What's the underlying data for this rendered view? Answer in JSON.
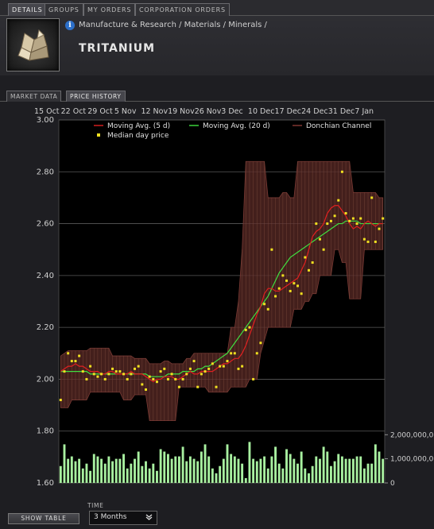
{
  "tabs": [
    {
      "label": "DETAILS",
      "active": true
    },
    {
      "label": "GROUPS",
      "active": false
    },
    {
      "label": "MY ORDERS",
      "active": false
    },
    {
      "label": "CORPORATION ORDERS",
      "active": false
    }
  ],
  "header": {
    "breadcrumb": "Manufacture & Research / Materials / Minerals /",
    "title": "TRITANIUM",
    "info_icon_glyph": "i"
  },
  "subtabs": [
    {
      "label": "MARKET DATA",
      "active": false
    },
    {
      "label": "PRICE HISTORY",
      "active": true
    }
  ],
  "footer": {
    "show_table_label": "SHOW TABLE",
    "time_label": "TIME",
    "time_value": "3 Months",
    "chevron": "❯"
  },
  "colors": {
    "moving_avg_5": "#e02020",
    "moving_avg_20": "#40e040",
    "donchian": "#5a2a26",
    "median": "#f0e020",
    "volume": "#a8f0a0"
  },
  "chart_data": {
    "type": "line",
    "x_tick_labels": [
      "15 Oct",
      "22 Oct",
      "29 Oct",
      "5 Nov",
      "12 Nov",
      "19 Nov",
      "26 Nov",
      "3 Dec",
      "10 Dec",
      "17 Dec",
      "24 Dec",
      "31 Dec",
      "7 Jan"
    ],
    "ylim": [
      1.6,
      3.0
    ],
    "y_ticks": [
      "3.00",
      "2.80",
      "2.60",
      "2.40",
      "2.20",
      "2.00",
      "1.80",
      "1.60"
    ],
    "volume_axis_labels": [
      "2,000,000,0",
      "1,000,000,0",
      "0"
    ],
    "volume_ticks": [
      2000000000,
      1000000000,
      0
    ],
    "legend": [
      {
        "name": "Moving Avg. (5 d)",
        "color": "#e02020",
        "kind": "line"
      },
      {
        "name": "Moving Avg. (20 d)",
        "color": "#40e040",
        "kind": "line"
      },
      {
        "name": "Donchian Channel",
        "color": "#5a2a26",
        "kind": "band"
      },
      {
        "name": "Median day price",
        "color": "#f0e020",
        "kind": "marker"
      }
    ],
    "grid": true,
    "days": 88,
    "series": [
      {
        "name": "Median day price",
        "values": [
          1.92,
          2.03,
          2.1,
          2.07,
          2.07,
          2.09,
          2.03,
          2.0,
          2.05,
          2.02,
          2.01,
          2.02,
          2.0,
          2.02,
          2.04,
          2.03,
          2.03,
          2.02,
          2.0,
          2.02,
          2.04,
          2.05,
          1.98,
          1.96,
          2.01,
          2.0,
          1.99,
          2.03,
          2.04,
          2.0,
          2.02,
          2.0,
          1.97,
          2.0,
          2.02,
          2.04,
          2.07,
          1.97,
          2.02,
          2.03,
          2.04,
          2.06,
          1.97,
          2.05,
          2.05,
          2.07,
          2.1,
          2.1,
          2.04,
          2.05,
          2.19,
          2.2,
          2.0,
          2.1,
          2.14,
          2.29,
          2.27,
          2.5,
          2.32,
          2.35,
          2.4,
          2.38,
          2.34,
          2.37,
          2.36,
          2.33,
          2.47,
          2.42,
          2.45,
          2.6,
          2.54,
          2.5,
          2.6,
          2.61,
          2.63,
          2.69,
          2.8,
          2.64,
          2.61,
          2.62,
          2.6,
          2.62,
          2.54,
          2.53,
          2.7,
          2.53,
          2.58,
          2.62
        ]
      },
      {
        "name": "Moving Avg. (5 d)",
        "values": [
          2.03,
          2.04,
          2.05,
          2.05,
          2.06,
          2.05,
          2.05,
          2.04,
          2.03,
          2.03,
          2.03,
          2.02,
          2.02,
          2.03,
          2.03,
          2.02,
          2.02,
          2.02,
          2.02,
          2.03,
          2.02,
          2.02,
          2.02,
          2.01,
          2.0,
          1.99,
          2.0,
          2.0,
          2.01,
          2.01,
          2.01,
          2.0,
          2.0,
          2.01,
          2.02,
          2.03,
          2.02,
          2.02,
          2.03,
          2.03,
          2.03,
          2.03,
          2.04,
          2.05,
          2.06,
          2.06,
          2.07,
          2.08,
          2.08,
          2.1,
          2.13,
          2.17,
          2.21,
          2.25,
          2.28,
          2.33,
          2.35,
          2.35,
          2.34,
          2.34,
          2.35,
          2.36,
          2.37,
          2.38,
          2.39,
          2.42,
          2.45,
          2.5,
          2.55,
          2.57,
          2.58,
          2.6,
          2.64,
          2.66,
          2.67,
          2.67,
          2.65,
          2.63,
          2.6,
          2.58,
          2.59,
          2.58,
          2.6,
          2.61,
          2.6,
          2.59,
          2.6,
          2.6
        ]
      },
      {
        "name": "Moving Avg. (20 d)",
        "values": [
          2.03,
          2.03,
          2.03,
          2.03,
          2.03,
          2.03,
          2.03,
          2.03,
          2.02,
          2.02,
          2.02,
          2.02,
          2.02,
          2.02,
          2.02,
          2.02,
          2.02,
          2.02,
          2.02,
          2.02,
          2.02,
          2.02,
          2.02,
          2.02,
          2.01,
          2.01,
          2.01,
          2.01,
          2.01,
          2.02,
          2.02,
          2.02,
          2.02,
          2.03,
          2.03,
          2.03,
          2.03,
          2.04,
          2.04,
          2.05,
          2.05,
          2.06,
          2.07,
          2.08,
          2.09,
          2.1,
          2.12,
          2.14,
          2.16,
          2.18,
          2.2,
          2.22,
          2.24,
          2.26,
          2.28,
          2.3,
          2.32,
          2.35,
          2.38,
          2.41,
          2.43,
          2.45,
          2.47,
          2.48,
          2.49,
          2.5,
          2.51,
          2.52,
          2.53,
          2.54,
          2.55,
          2.56,
          2.57,
          2.58,
          2.59,
          2.6,
          2.6,
          2.61,
          2.61,
          2.61,
          2.61,
          2.6,
          2.6,
          2.6,
          2.6,
          2.6,
          2.6,
          2.6
        ]
      }
    ],
    "donchian": {
      "upper": [
        2.09,
        2.1,
        2.11,
        2.11,
        2.11,
        2.11,
        2.11,
        2.11,
        2.12,
        2.12,
        2.12,
        2.12,
        2.12,
        2.12,
        2.09,
        2.09,
        2.09,
        2.09,
        2.09,
        2.09,
        2.08,
        2.08,
        2.08,
        2.08,
        2.06,
        2.06,
        2.06,
        2.06,
        2.07,
        2.07,
        2.06,
        2.06,
        2.06,
        2.06,
        2.08,
        2.08,
        2.1,
        2.1,
        2.1,
        2.1,
        2.1,
        2.1,
        2.1,
        2.1,
        2.1,
        2.1,
        2.2,
        2.2,
        2.3,
        2.5,
        2.84,
        2.84,
        2.84,
        2.84,
        2.84,
        2.84,
        2.7,
        2.7,
        2.7,
        2.7,
        2.72,
        2.72,
        2.7,
        2.7,
        2.84,
        2.84,
        2.84,
        2.84,
        2.84,
        2.84,
        2.84,
        2.84,
        2.84,
        2.84,
        2.84,
        2.84,
        2.84,
        2.84,
        2.84,
        2.72,
        2.72,
        2.72,
        2.72,
        2.72,
        2.72,
        2.72,
        2.7,
        2.7
      ],
      "lower": [
        1.89,
        1.89,
        1.89,
        1.92,
        1.92,
        1.92,
        1.92,
        1.92,
        1.95,
        1.95,
        1.95,
        1.95,
        1.95,
        1.95,
        1.95,
        1.95,
        1.95,
        1.92,
        1.92,
        1.92,
        1.94,
        1.94,
        1.94,
        1.94,
        1.84,
        1.84,
        1.84,
        1.84,
        1.84,
        1.84,
        1.84,
        1.84,
        1.97,
        1.97,
        1.97,
        1.97,
        1.97,
        1.97,
        1.97,
        1.97,
        1.95,
        1.95,
        1.95,
        1.95,
        1.95,
        1.95,
        1.97,
        1.97,
        1.97,
        1.97,
        1.97,
        2.0,
        2.0,
        2.0,
        2.1,
        2.15,
        2.2,
        2.2,
        2.2,
        2.2,
        2.2,
        2.2,
        2.2,
        2.27,
        2.27,
        2.27,
        2.3,
        2.3,
        2.33,
        2.33,
        2.4,
        2.4,
        2.4,
        2.4,
        2.5,
        2.5,
        2.45,
        2.45,
        2.31,
        2.31,
        2.31,
        2.31,
        2.5,
        2.5,
        2.5,
        2.5,
        2.5,
        2.5
      ]
    },
    "volume": {
      "name": "Volume",
      "values": [
        0.7,
        1.6,
        1.0,
        1.1,
        0.9,
        1.0,
        0.6,
        0.8,
        0.5,
        1.2,
        1.1,
        1.0,
        0.8,
        1.1,
        0.9,
        1.0,
        1.0,
        1.2,
        0.6,
        0.8,
        1.0,
        1.3,
        0.7,
        0.9,
        0.6,
        0.8,
        0.5,
        1.4,
        1.3,
        1.2,
        1.0,
        1.1,
        1.1,
        1.5,
        0.9,
        1.1,
        1.0,
        0.9,
        1.3,
        1.6,
        1.1,
        0.6,
        0.4,
        0.7,
        1.0,
        1.6,
        1.2,
        1.1,
        1.0,
        0.8,
        0.2,
        1.7,
        1.0,
        0.9,
        1.0,
        1.1,
        0.6,
        1.1,
        1.5,
        0.8,
        0.6,
        1.4,
        1.2,
        1.0,
        0.8,
        1.3,
        0.6,
        0.4,
        0.7,
        1.1,
        1.0,
        1.5,
        1.3,
        0.7,
        0.9,
        1.2,
        1.1,
        1.0,
        1.0,
        1.0,
        1.1,
        1.1,
        0.6,
        0.8,
        0.8,
        1.6,
        1.3,
        1.0
      ]
    }
  }
}
